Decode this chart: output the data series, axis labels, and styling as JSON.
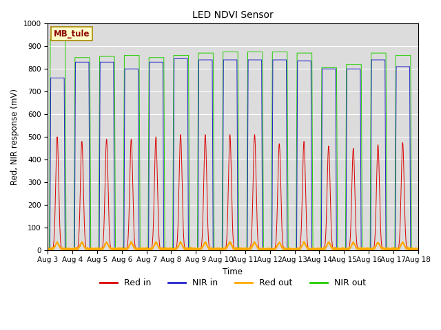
{
  "title": "LED NDVI Sensor",
  "ylabel": "Red, NIR response (mV)",
  "xlabel": "Time",
  "ylim": [
    0,
    1000
  ],
  "label": "MB_tule",
  "legend_entries": [
    "Red in",
    "NIR in",
    "Red out",
    "NIR out"
  ],
  "line_colors": [
    "#dd0000",
    "#2222cc",
    "#ffaa00",
    "#22cc00"
  ],
  "background_color": "#dcdcdc",
  "x_tick_labels": [
    "Aug 3",
    "Aug 4",
    "Aug 5",
    "Aug 6",
    "Aug 7",
    "Aug 8",
    "Aug 9",
    "Aug 10",
    "Aug 11",
    "Aug 12",
    "Aug 13",
    "Aug 14",
    "Aug 15",
    "Aug 16",
    "Aug 17",
    "Aug 18"
  ],
  "figsize": [
    6.4,
    4.8
  ],
  "dpi": 100
}
